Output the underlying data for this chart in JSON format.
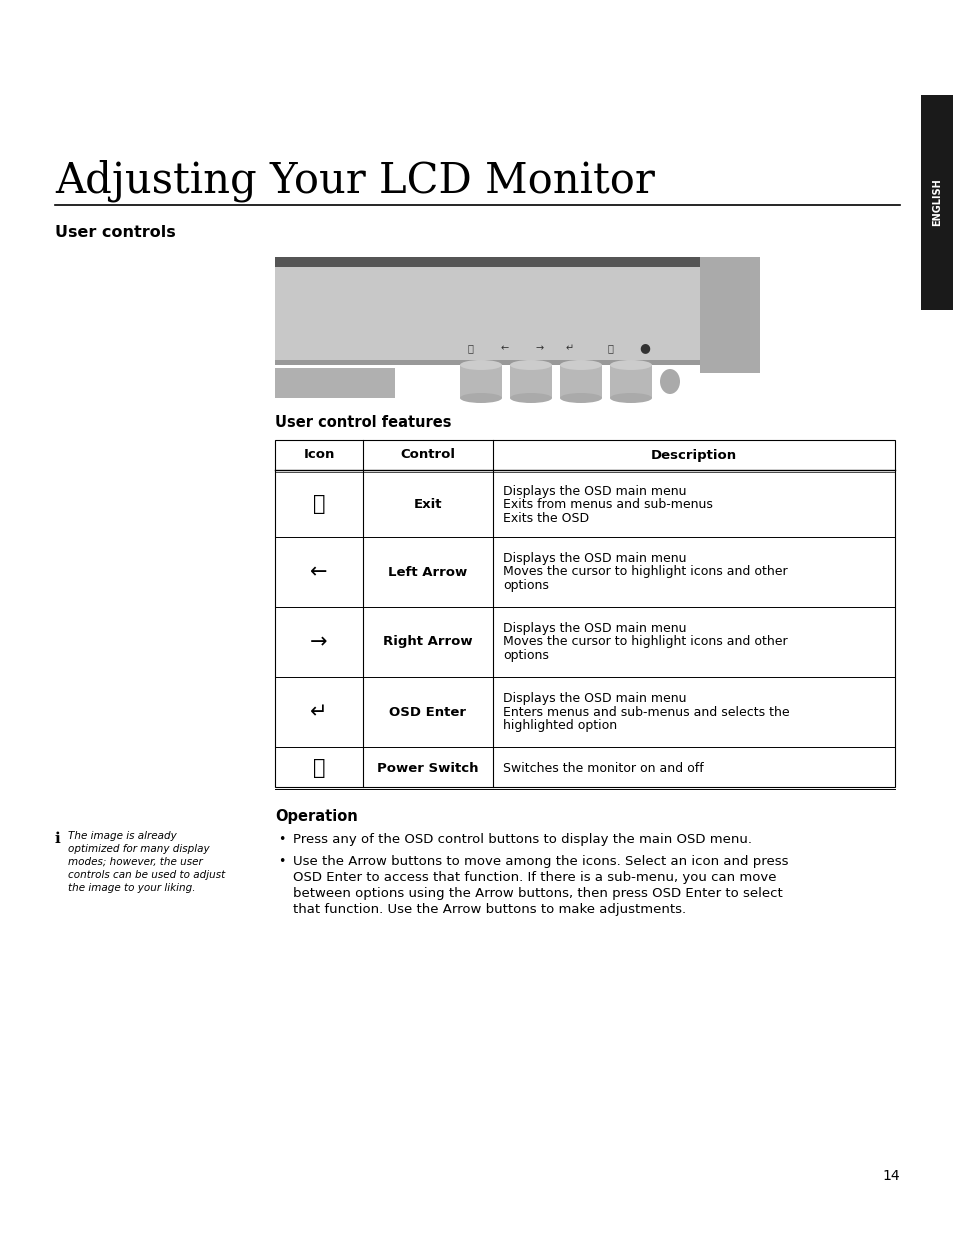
{
  "title": "Adjusting Your LCD Monitor",
  "section_heading": "User controls",
  "subsection_heading": "User control features",
  "operation_heading": "Operation",
  "sidebar_label": "ENGLISH",
  "page_number": "14",
  "table_headers": [
    "Icon",
    "Control",
    "Description"
  ],
  "table_rows": [
    {
      "icon": "⮞",
      "icon_type": "exit",
      "control": "Exit",
      "description": "Displays the OSD main menu\nExits from menus and sub-menus\nExits the OSD"
    },
    {
      "icon": "←",
      "icon_type": "left_arrow",
      "control": "Left Arrow",
      "description": "Displays the OSD main menu\nMoves the cursor to highlight icons and other\noptions"
    },
    {
      "icon": "→",
      "icon_type": "right_arrow",
      "control": "Right Arrow",
      "description": "Displays the OSD main menu\nMoves the cursor to highlight icons and other\noptions"
    },
    {
      "icon": "↵",
      "icon_type": "enter",
      "control": "OSD Enter",
      "description": "Displays the OSD main menu\nEnters menus and sub-menus and selects the\nhighlighted option"
    },
    {
      "icon": "⏻",
      "icon_type": "power",
      "control": "Power Switch",
      "description": "Switches the monitor on and off"
    }
  ],
  "bullet_points": [
    "Press any of the OSD control buttons to display the main OSD menu.",
    "Use the Arrow buttons to move among the icons. Select an icon and press\nOSD Enter to access that function. If there is a sub-menu, you can move\nbetween options using the Arrow buttons, then press OSD Enter to select\nthat function. Use the Arrow buttons to make adjustments."
  ],
  "note_lines": [
    "The image is already",
    "optimized for many display",
    "modes; however, the user",
    "controls can be used to adjust",
    "the image to your liking."
  ],
  "bg_color": "#ffffff",
  "text_color": "#000000",
  "sidebar_bg": "#1a1a1a",
  "sidebar_text": "#ffffff",
  "monitor_body_color": "#c8c8c8",
  "monitor_dark_color": "#555555",
  "monitor_right_color": "#aaaaaa",
  "monitor_btn_color": "#b8b8b8"
}
